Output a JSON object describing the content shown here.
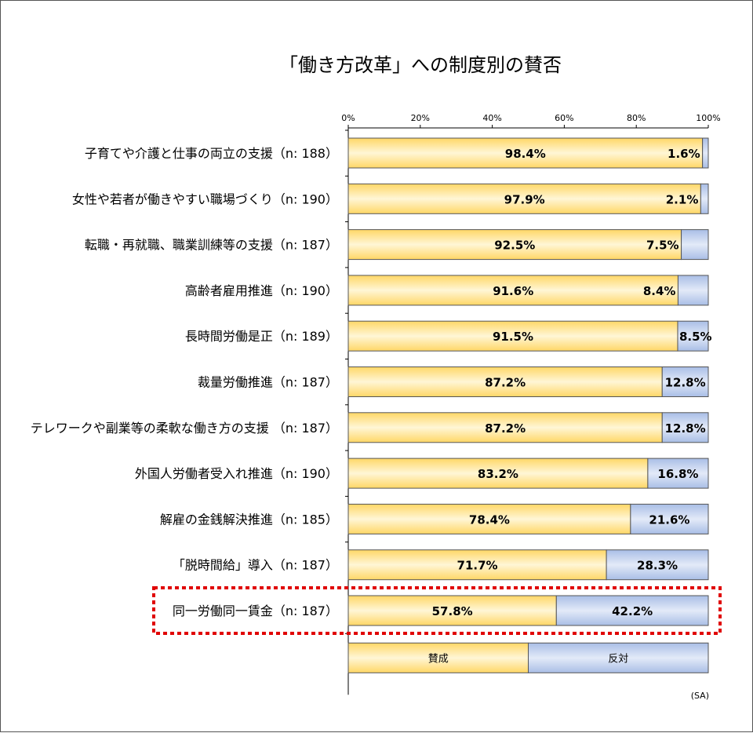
{
  "chart_data": {
    "type": "bar",
    "orientation": "horizontal",
    "stacked": true,
    "title": "「働き方改革」への制度別の賛否",
    "categories": [
      "子育てや介護と仕事の両立の支援（n: 188）",
      "女性や若者が働きやすい職場づくり（n: 190）",
      "転職・再就職、職業訓練等の支援（n: 187）",
      "高齢者雇用推進（n: 190）",
      "長時間労働是正（n: 189）",
      "裁量労働推進（n: 187）",
      "テレワークや副業等の柔軟な働き方の支援 （n: 187）",
      "外国人労働者受入れ推進（n: 190）",
      "解雇の金銭解決推進（n: 185）",
      "「脱時間給」導入（n: 187）",
      "同一労働同一賃金（n: 187）"
    ],
    "series": [
      {
        "name": "賛成",
        "values": [
          98.4,
          97.9,
          92.5,
          91.6,
          91.5,
          87.2,
          87.2,
          83.2,
          78.4,
          71.7,
          57.8
        ],
        "labels": [
          "98.4%",
          "97.9%",
          "92.5%",
          "91.6%",
          "91.5%",
          "87.2%",
          "87.2%",
          "83.2%",
          "78.4%",
          "71.7%",
          "57.8%"
        ]
      },
      {
        "name": "反対",
        "values": [
          1.6,
          2.1,
          7.5,
          8.4,
          8.5,
          12.8,
          12.8,
          16.8,
          21.6,
          28.3,
          42.2
        ],
        "labels": [
          "1.6%",
          "2.1%",
          "7.5%",
          "8.4%",
          "8.5%",
          "12.8%",
          "12.8%",
          "16.8%",
          "21.6%",
          "28.3%",
          "42.2%"
        ]
      }
    ],
    "xlim": [
      0,
      100
    ],
    "x_ticks": [
      "0%",
      "20%",
      "40%",
      "60%",
      "80%",
      "100%"
    ],
    "legend": {
      "position": "bottom",
      "entries": [
        "賛成",
        "反対"
      ]
    },
    "note": "(SA)",
    "highlighted_category": "同一労働同一賃金（n: 187）",
    "colors": {
      "agree": "#FFD766",
      "agree_highlight": "#FFF6D6",
      "disagree": "#A9BEE6",
      "disagree_highlight": "#E3EAF8",
      "highlight_box": "#E00000"
    }
  }
}
